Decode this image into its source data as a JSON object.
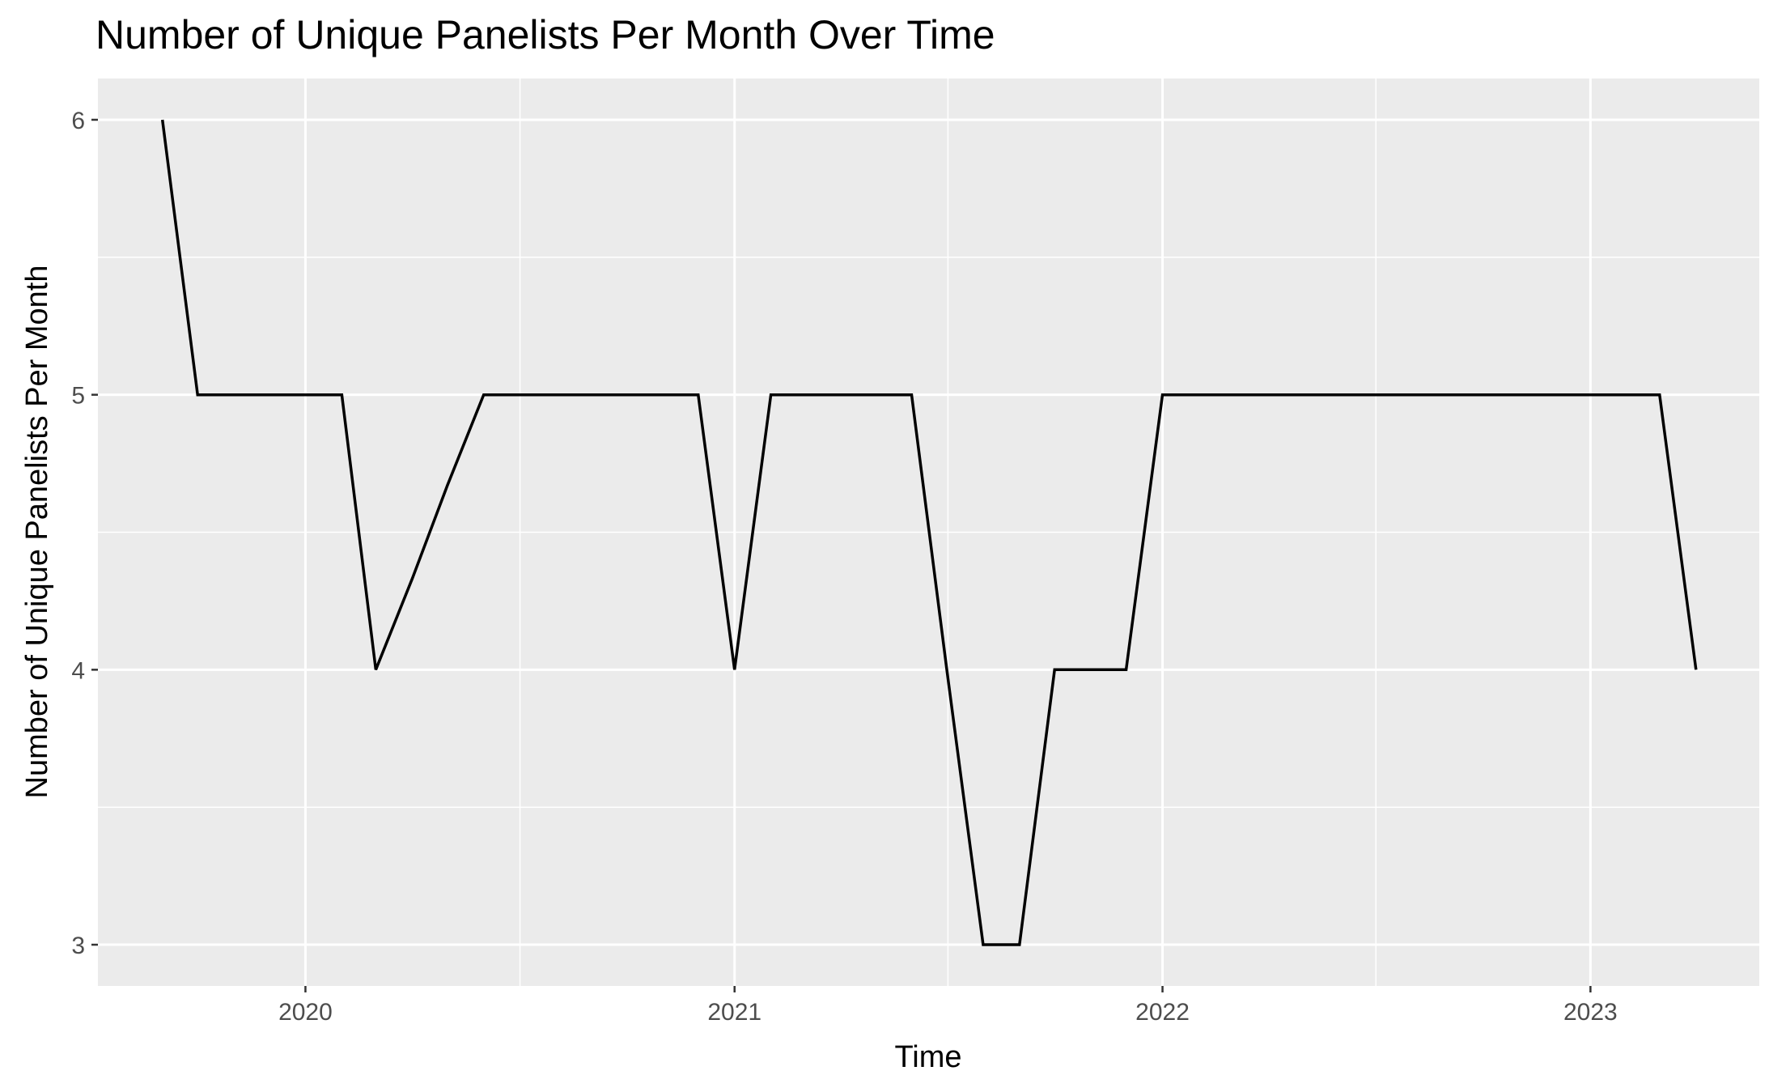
{
  "chart_data": {
    "type": "line",
    "title": "Number of Unique Panelists Per Month Over Time",
    "xlabel": "Time",
    "ylabel": "Number of Unique Panelists Per Month",
    "x_ticks": [
      "2020",
      "2021",
      "2022",
      "2023"
    ],
    "y_ticks": [
      3,
      4,
      5,
      6
    ],
    "ylim": [
      2.85,
      6.15
    ],
    "xlim": [
      "2019-07-08",
      "2023-05-25"
    ],
    "grid": true,
    "colors": {
      "panel_background": "#EBEBEB",
      "grid": "#FFFFFF",
      "line": "#000000"
    },
    "series": [
      {
        "x": [
          "2019-09-01",
          "2019-10-01",
          "2019-11-01",
          "2019-12-01",
          "2020-01-01",
          "2020-02-01",
          "2020-03-01",
          "2020-04-01",
          "2020-05-01",
          "2020-06-01",
          "2020-07-01",
          "2020-08-01",
          "2020-09-01",
          "2020-10-01",
          "2020-11-01",
          "2020-12-01",
          "2021-01-01",
          "2021-02-01",
          "2021-03-01",
          "2021-04-01",
          "2021-05-01",
          "2021-06-01",
          "2021-07-01",
          "2021-08-01",
          "2021-09-01",
          "2021-10-01",
          "2021-11-01",
          "2021-12-01",
          "2022-01-01",
          "2022-02-01",
          "2022-03-01",
          "2022-04-01",
          "2022-05-01",
          "2022-06-01",
          "2022-07-01",
          "2022-08-01",
          "2022-09-01",
          "2022-10-01",
          "2022-11-01",
          "2022-12-01",
          "2023-01-01",
          "2023-02-01",
          "2023-03-01",
          "2023-04-01"
        ],
        "values": [
          6,
          5,
          5,
          5,
          5,
          5,
          4,
          4.33,
          4.67,
          5,
          5,
          5,
          5,
          5,
          5,
          5,
          4,
          5,
          5,
          5,
          5,
          5,
          4,
          3,
          3,
          4,
          4,
          4,
          5,
          5,
          5,
          5,
          5,
          5,
          5,
          5,
          5,
          5,
          5,
          5,
          5,
          5,
          5,
          4
        ]
      }
    ]
  }
}
